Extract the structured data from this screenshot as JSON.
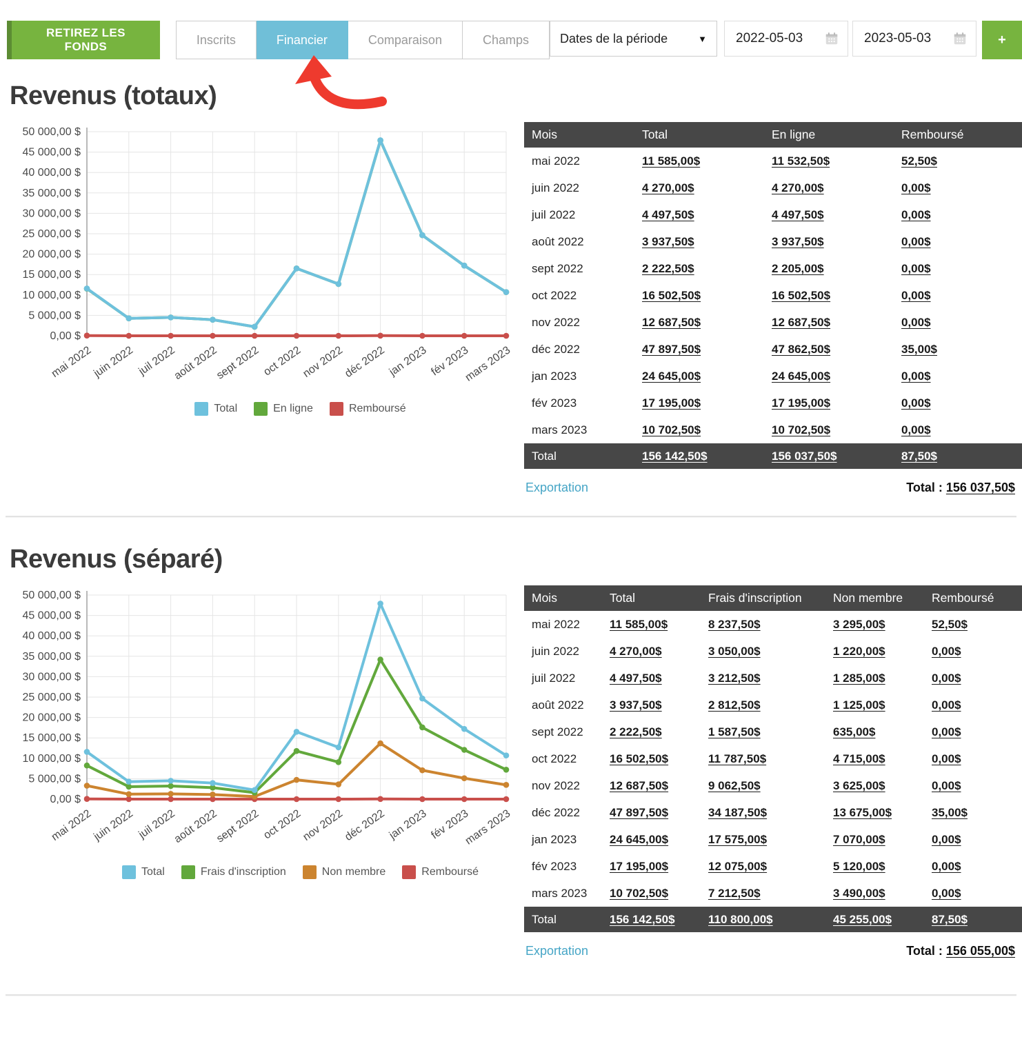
{
  "header": {
    "withdraw_button": "RETIREZ LES FONDS",
    "tabs": [
      {
        "label": "Inscrits",
        "active": false
      },
      {
        "label": "Financier",
        "active": true
      },
      {
        "label": "Comparaison",
        "active": false
      },
      {
        "label": "Champs",
        "active": false
      }
    ],
    "period_select": "Dates de la période",
    "date_start": "2022-05-03",
    "date_end": "2023-05-03",
    "add_button": "+",
    "accent_green": "#77b43f",
    "accent_blue": "#70bfd8",
    "arrow_red": "#ee3a2e"
  },
  "sections": [
    {
      "title": "Revenus (totaux)",
      "export_label": "Exportation",
      "grand_total_label": "Total :",
      "grand_total_value": "156 037,50$",
      "table": {
        "columns": [
          "Mois",
          "Total",
          "En ligne",
          "Remboursé"
        ],
        "rows": [
          [
            "mai 2022",
            "11 585,00$",
            "11 532,50$",
            "52,50$"
          ],
          [
            "juin 2022",
            "4 270,00$",
            "4 270,00$",
            "0,00$"
          ],
          [
            "juil 2022",
            "4 497,50$",
            "4 497,50$",
            "0,00$"
          ],
          [
            "août 2022",
            "3 937,50$",
            "3 937,50$",
            "0,00$"
          ],
          [
            "sept 2022",
            "2 222,50$",
            "2 205,00$",
            "0,00$"
          ],
          [
            "oct 2022",
            "16 502,50$",
            "16 502,50$",
            "0,00$"
          ],
          [
            "nov 2022",
            "12 687,50$",
            "12 687,50$",
            "0,00$"
          ],
          [
            "déc 2022",
            "47 897,50$",
            "47 862,50$",
            "35,00$"
          ],
          [
            "jan 2023",
            "24 645,00$",
            "24 645,00$",
            "0,00$"
          ],
          [
            "fév 2023",
            "17 195,00$",
            "17 195,00$",
            "0,00$"
          ],
          [
            "mars 2023",
            "10 702,50$",
            "10 702,50$",
            "0,00$"
          ]
        ],
        "footer": [
          "Total",
          "156 142,50$",
          "156 037,50$",
          "87,50$"
        ]
      },
      "chart_data": {
        "type": "line",
        "title": "Revenus (totaux)",
        "categories": [
          "mai 2022",
          "juin 2022",
          "juil 2022",
          "août 2022",
          "sept 2022",
          "oct 2022",
          "nov 2022",
          "déc 2022",
          "jan 2023",
          "fév 2023",
          "mars 2023"
        ],
        "series": [
          {
            "name": "Total",
            "color": "#6ec1dd",
            "values": [
              11585,
              4270,
              4497.5,
              3937.5,
              2222.5,
              16502.5,
              12687.5,
              47897.5,
              24645,
              17195,
              10702.5
            ]
          },
          {
            "name": "En ligne",
            "color": "#62a83c",
            "values": [
              11532.5,
              4270,
              4497.5,
              3937.5,
              2205,
              16502.5,
              12687.5,
              47862.5,
              24645,
              17195,
              10702.5
            ]
          },
          {
            "name": "Remboursé",
            "color": "#c94f4b",
            "values": [
              52.5,
              0,
              0,
              0,
              0,
              0,
              0,
              35,
              0,
              0,
              0
            ]
          }
        ],
        "ylim": [
          0,
          50000
        ],
        "ytick_step": 5000,
        "yticks": [
          "0,00 $",
          "5 000,00 $",
          "10 000,00 $",
          "15 000,00 $",
          "20 000,00 $",
          "25 000,00 $",
          "30 000,00 $",
          "35 000,00 $",
          "40 000,00 $",
          "45 000,00 $",
          "50 000,00 $"
        ],
        "grid": true,
        "legend_position": "bottom"
      }
    },
    {
      "title": "Revenus (séparé)",
      "export_label": "Exportation",
      "grand_total_label": "Total :",
      "grand_total_value": "156 055,00$",
      "table": {
        "columns": [
          "Mois",
          "Total",
          "Frais d'inscription",
          "Non membre",
          "Remboursé"
        ],
        "rows": [
          [
            "mai 2022",
            "11 585,00$",
            "8 237,50$",
            "3 295,00$",
            "52,50$"
          ],
          [
            "juin 2022",
            "4 270,00$",
            "3 050,00$",
            "1 220,00$",
            "0,00$"
          ],
          [
            "juil 2022",
            "4 497,50$",
            "3 212,50$",
            "1 285,00$",
            "0,00$"
          ],
          [
            "août 2022",
            "3 937,50$",
            "2 812,50$",
            "1 125,00$",
            "0,00$"
          ],
          [
            "sept 2022",
            "2 222,50$",
            "1 587,50$",
            "635,00$",
            "0,00$"
          ],
          [
            "oct 2022",
            "16 502,50$",
            "11 787,50$",
            "4 715,00$",
            "0,00$"
          ],
          [
            "nov 2022",
            "12 687,50$",
            "9 062,50$",
            "3 625,00$",
            "0,00$"
          ],
          [
            "déc 2022",
            "47 897,50$",
            "34 187,50$",
            "13 675,00$",
            "35,00$"
          ],
          [
            "jan 2023",
            "24 645,00$",
            "17 575,00$",
            "7 070,00$",
            "0,00$"
          ],
          [
            "fév 2023",
            "17 195,00$",
            "12 075,00$",
            "5 120,00$",
            "0,00$"
          ],
          [
            "mars 2023",
            "10 702,50$",
            "7 212,50$",
            "3 490,00$",
            "0,00$"
          ]
        ],
        "footer": [
          "Total",
          "156 142,50$",
          "110 800,00$",
          "45 255,00$",
          "87,50$"
        ]
      },
      "chart_data": {
        "type": "line",
        "title": "Revenus (séparé)",
        "categories": [
          "mai 2022",
          "juin 2022",
          "juil 2022",
          "août 2022",
          "sept 2022",
          "oct 2022",
          "nov 2022",
          "déc 2022",
          "jan 2023",
          "fév 2023",
          "mars 2023"
        ],
        "series": [
          {
            "name": "Total",
            "color": "#6ec1dd",
            "values": [
              11585,
              4270,
              4497.5,
              3937.5,
              2222.5,
              16502.5,
              12687.5,
              47897.5,
              24645,
              17195,
              10702.5
            ]
          },
          {
            "name": "Frais d'inscription",
            "color": "#62a83c",
            "values": [
              8237.5,
              3050,
              3212.5,
              2812.5,
              1587.5,
              11787.5,
              9062.5,
              34187.5,
              17575,
              12075,
              7212.5
            ]
          },
          {
            "name": "Non membre",
            "color": "#cc842f",
            "values": [
              3295,
              1220,
              1285,
              1125,
              635,
              4715,
              3625,
              13675,
              7070,
              5120,
              3490
            ]
          },
          {
            "name": "Remboursé",
            "color": "#c94f4b",
            "values": [
              52.5,
              0,
              0,
              0,
              0,
              0,
              0,
              35,
              0,
              0,
              0
            ]
          }
        ],
        "ylim": [
          0,
          50000
        ],
        "ytick_step": 5000,
        "yticks": [
          "0,00 $",
          "5 000,00 $",
          "10 000,00 $",
          "15 000,00 $",
          "20 000,00 $",
          "25 000,00 $",
          "30 000,00 $",
          "35 000,00 $",
          "40 000,00 $",
          "45 000,00 $",
          "50 000,00 $"
        ],
        "grid": true,
        "legend_position": "bottom"
      }
    }
  ]
}
